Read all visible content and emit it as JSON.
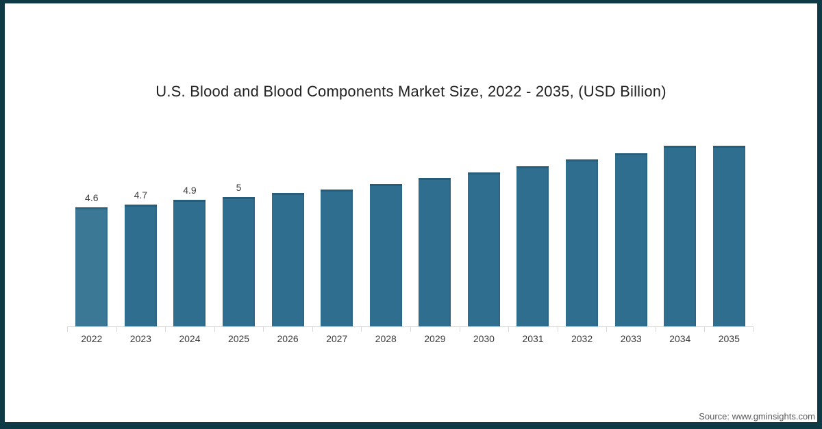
{
  "title": "U.S. Blood and Blood Components Market Size, 2022 - 2035, (USD Billion)",
  "source": "Source: www.gminsights.com",
  "frame": {
    "border_color": "#0e3a46",
    "background": "#ffffff"
  },
  "chart_data": {
    "type": "bar",
    "title": "U.S. Blood and Blood Components Market Size, 2022 - 2035, (USD Billion)",
    "categories": [
      "2022",
      "2023",
      "2024",
      "2025",
      "2026",
      "2027",
      "2028",
      "2029",
      "2030",
      "2031",
      "2032",
      "2033",
      "2034",
      "2035"
    ],
    "values": [
      4.6,
      4.7,
      4.9,
      5,
      5.15,
      5.3,
      5.5,
      5.75,
      5.95,
      6.2,
      6.45,
      6.7,
      7.05,
      7.4
    ],
    "data_labels": [
      "4.6",
      "4.7",
      "4.9",
      "5",
      "",
      "",
      "",
      "",
      "",
      "",
      "",
      "",
      "",
      ""
    ],
    "xlabel": "",
    "ylabel": "",
    "ylim": [
      0,
      7.7
    ],
    "grid": false,
    "legend": false,
    "bar_color": "#2f6e8e",
    "first_bar_color": "#3a7896",
    "axis_color": "#d9d9d9",
    "label_color": "#3f3f3f"
  }
}
